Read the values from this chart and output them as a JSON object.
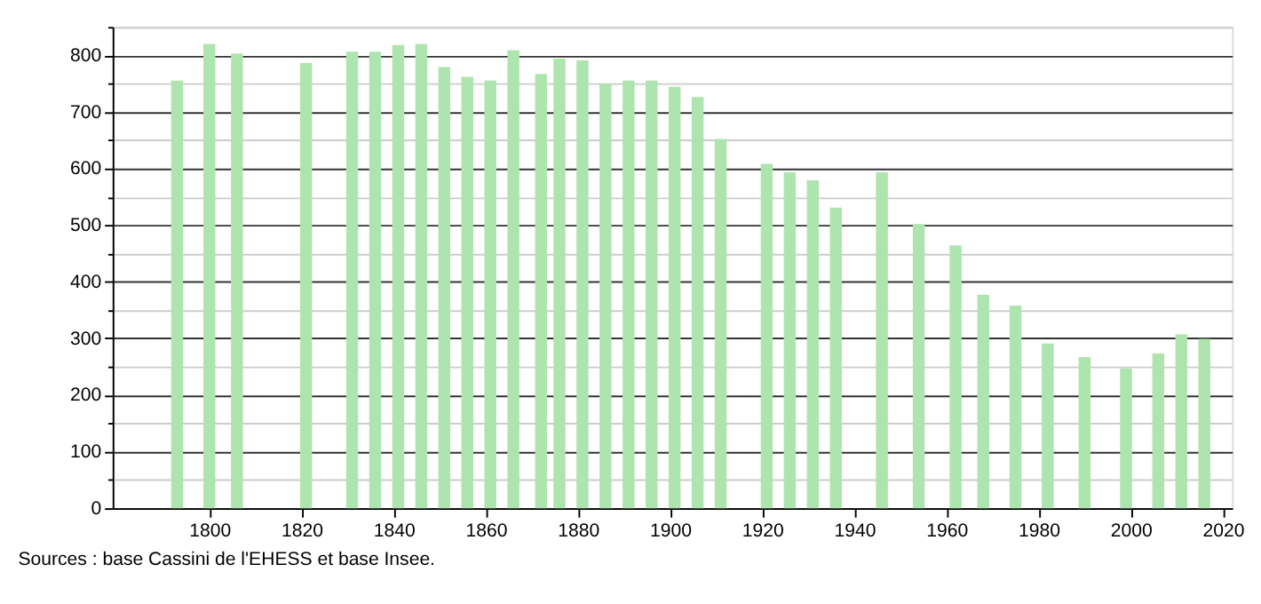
{
  "chart_data": {
    "type": "bar",
    "x": [
      1793,
      1800,
      1806,
      1821,
      1831,
      1836,
      1841,
      1846,
      1851,
      1856,
      1861,
      1866,
      1872,
      1876,
      1881,
      1886,
      1891,
      1896,
      1901,
      1906,
      1911,
      1921,
      1926,
      1931,
      1936,
      1946,
      1954,
      1962,
      1968,
      1975,
      1982,
      1990,
      1999,
      2006,
      2011,
      2016
    ],
    "values": [
      755,
      820,
      803,
      786,
      806,
      806,
      818,
      820,
      779,
      762,
      755,
      809,
      767,
      794,
      791,
      750,
      755,
      755,
      744,
      726,
      652,
      608,
      593,
      579,
      531,
      593,
      502,
      464,
      377,
      358,
      291,
      267,
      247,
      273,
      307,
      299
    ],
    "color": "#aee4ae",
    "xlim": [
      1779,
      2022
    ],
    "xticks": [
      1800,
      1820,
      1840,
      1860,
      1880,
      1900,
      1920,
      1940,
      1960,
      1980,
      2000,
      2020
    ],
    "ylim": [
      0,
      850
    ],
    "yticks": [
      0,
      {
        "value": 50,
        "label": null
      },
      100,
      {
        "value": 150,
        "label": null
      },
      200,
      {
        "value": 250,
        "label": null
      },
      300,
      {
        "value": 350,
        "label": null
      },
      400,
      {
        "value": 450,
        "label": null
      },
      500,
      {
        "value": 550,
        "label": null
      },
      600,
      {
        "value": 650,
        "label": null
      },
      700,
      {
        "value": 750,
        "label": null
      },
      800,
      {
        "value": 850,
        "label": null
      }
    ],
    "grid": "y",
    "annotations": [
      "Sources : base Cassini de l'EHESS et base Insee."
    ]
  }
}
